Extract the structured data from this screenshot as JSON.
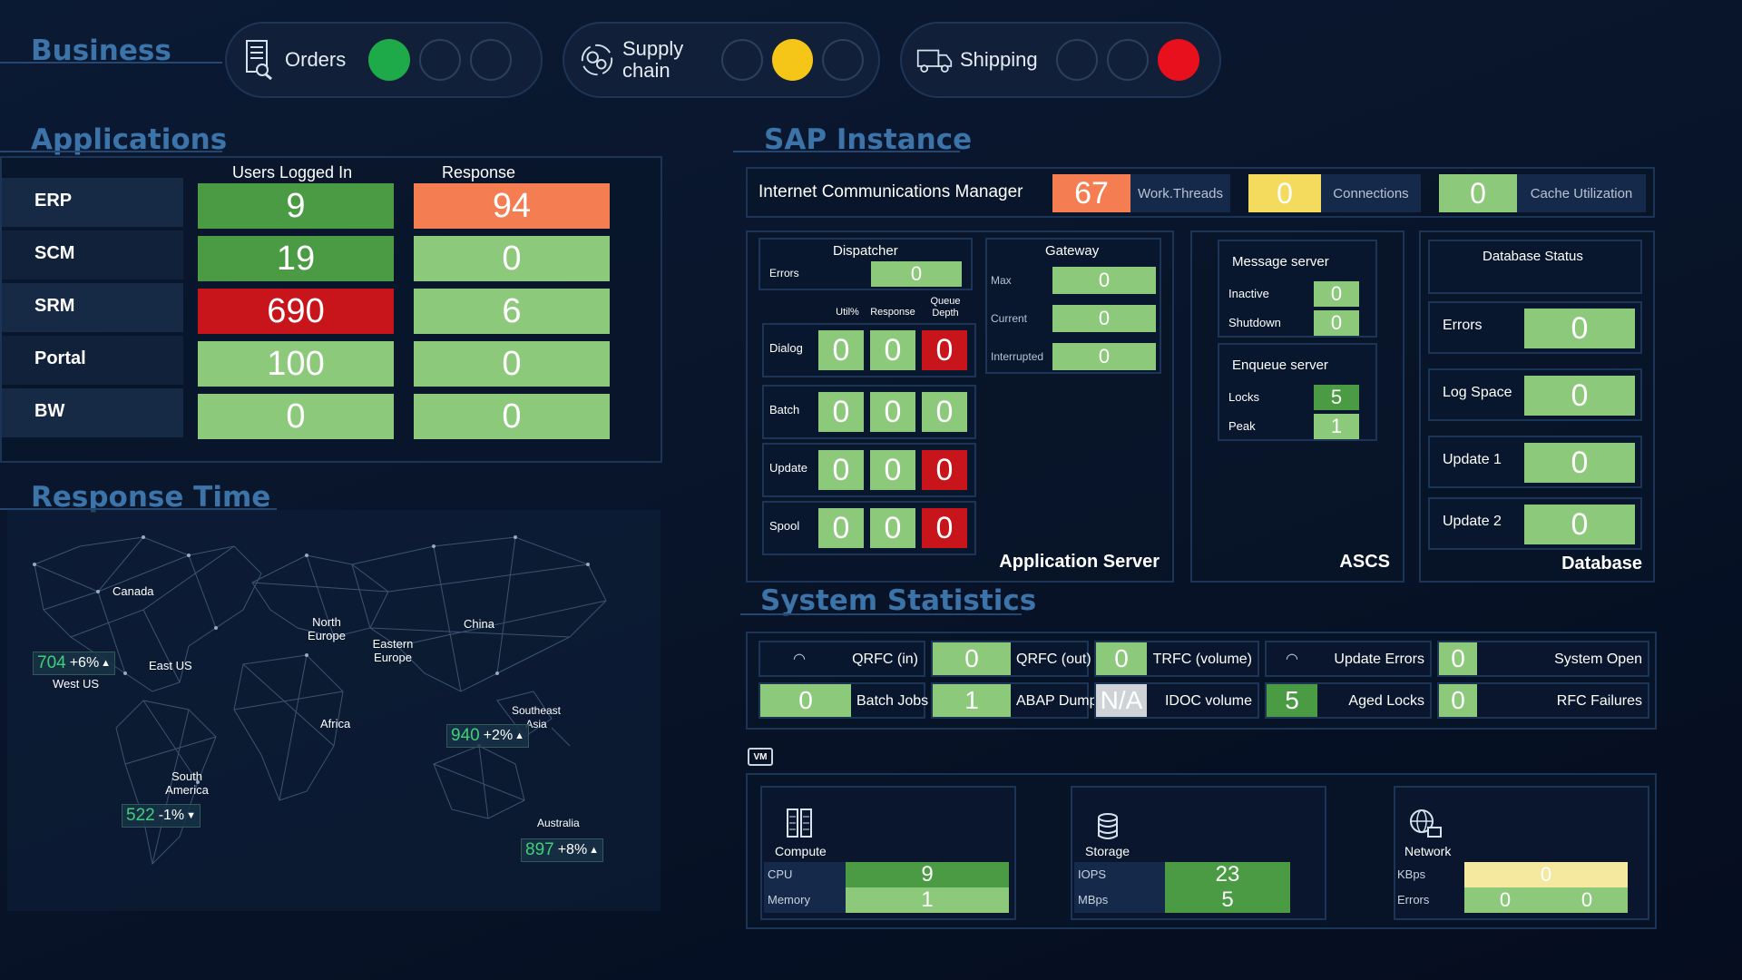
{
  "business": {
    "title": "Business",
    "items": [
      {
        "label": "Orders",
        "icon": "document-search-icon",
        "active": 0,
        "color": "#1faa4a"
      },
      {
        "label_line1": "Supply",
        "label_line2": "chain",
        "icon": "supply-chain-gears-icon",
        "active": 1,
        "color": "#f5c518"
      },
      {
        "label": "Shipping",
        "icon": "truck-icon",
        "active": 2,
        "color": "#e8101c"
      }
    ]
  },
  "applications": {
    "title": "Applications",
    "col_users": "Users Logged In",
    "col_response": "Response",
    "rows": [
      {
        "name": "ERP",
        "users": "9",
        "response": "94"
      },
      {
        "name": "SCM",
        "users": "19",
        "response": "0"
      },
      {
        "name": "SRM",
        "users": "690",
        "response": "6"
      },
      {
        "name": "Portal",
        "users": "100",
        "response": "0"
      },
      {
        "name": "BW",
        "users": "0",
        "response": "0"
      }
    ]
  },
  "response_time": {
    "title": "Response Time",
    "regions": [
      "Canada",
      "North Europe",
      "Eastern Europe",
      "China",
      "East US",
      "West US",
      "Africa",
      "Southeast Asia",
      "South America",
      "Australia"
    ],
    "badges": [
      {
        "value": "704",
        "change": "+6%",
        "dir": "▲"
      },
      {
        "value": "940",
        "change": "+2%",
        "dir": "▲"
      },
      {
        "value": "522",
        "change": "-1%",
        "dir": "▼"
      },
      {
        "value": "897",
        "change": "+8%",
        "dir": "▲"
      }
    ]
  },
  "sap": {
    "title": "SAP Instance",
    "icm": {
      "label": "Internet Communications Manager",
      "threads": "67",
      "threads_label": "Work.Threads",
      "connections": "0",
      "connections_label": "Connections",
      "cache": "0",
      "cache_label": "Cache Utilization"
    },
    "dispatcher": {
      "title": "Dispatcher",
      "errors_label": "Errors",
      "errors": "0"
    },
    "wp_headers": [
      "Util%",
      "Response",
      "Queue Depth"
    ],
    "wp_rows": [
      {
        "label": "Dialog",
        "values": [
          "0",
          "0",
          "0"
        ]
      },
      {
        "label": "Batch",
        "values": [
          "0",
          "0",
          "0"
        ]
      },
      {
        "label": "Update",
        "values": [
          "0",
          "0",
          "0"
        ]
      },
      {
        "label": "Spool",
        "values": [
          "0",
          "0",
          "0"
        ]
      }
    ],
    "gateway": {
      "title": "Gateway",
      "rows": [
        {
          "label": "Max",
          "value": "0"
        },
        {
          "label": "Current",
          "value": "0"
        },
        {
          "label": "Interrupted",
          "value": "0"
        }
      ]
    },
    "app_server_label": "Application Server",
    "message_server": {
      "title": "Message server",
      "rows": [
        {
          "label": "Inactive",
          "value": "0"
        },
        {
          "label": "Shutdown",
          "value": "0"
        }
      ]
    },
    "enqueue_server": {
      "title": "Enqueue server",
      "rows": [
        {
          "label": "Locks",
          "value": "5"
        },
        {
          "label": "Peak",
          "value": "1"
        }
      ]
    },
    "ascs_label": "ASCS",
    "database": {
      "title": "Database Status",
      "rows": [
        {
          "label": "Errors",
          "value": "0"
        },
        {
          "label": "Log Space",
          "value": "0"
        },
        {
          "label": "Update 1",
          "value": "0"
        },
        {
          "label": "Update 2",
          "value": "0"
        }
      ],
      "label": "Database"
    }
  },
  "system_stats": {
    "title": "System Statistics",
    "row1": [
      {
        "label": "QRFC (in)",
        "value": "◠"
      },
      {
        "label": "QRFC (out)",
        "value": "0"
      },
      {
        "label": "TRFC (volume)",
        "value": "0"
      },
      {
        "label": "Update Errors",
        "value": "◠"
      },
      {
        "label": "System Open",
        "value": "0"
      }
    ],
    "row2": [
      {
        "label": "Batch Jobs",
        "value": "0"
      },
      {
        "label": "ABAP Dumps",
        "value": "1"
      },
      {
        "label": "IDOC volume",
        "value": "N/A"
      },
      {
        "label": "Aged Locks",
        "value": "5"
      },
      {
        "label": "RFC Failures",
        "value": "0"
      }
    ]
  },
  "vm": {
    "tag": "VM",
    "compute": {
      "title": "Compute",
      "icon": "server-rack-icon",
      "rows": [
        {
          "label": "CPU",
          "value": "9"
        },
        {
          "label": "Memory",
          "value": "1"
        }
      ]
    },
    "storage": {
      "title": "Storage",
      "icon": "database-cylinder-icon",
      "rows": [
        {
          "label": "IOPS",
          "value": "23"
        },
        {
          "label": "MBps",
          "value": "5"
        }
      ]
    },
    "network": {
      "title": "Network",
      "icon": "globe-network-icon",
      "kbps_label": "KBps",
      "kbps": "0",
      "errors_label": "Errors",
      "errors": [
        "0",
        "0"
      ]
    }
  }
}
